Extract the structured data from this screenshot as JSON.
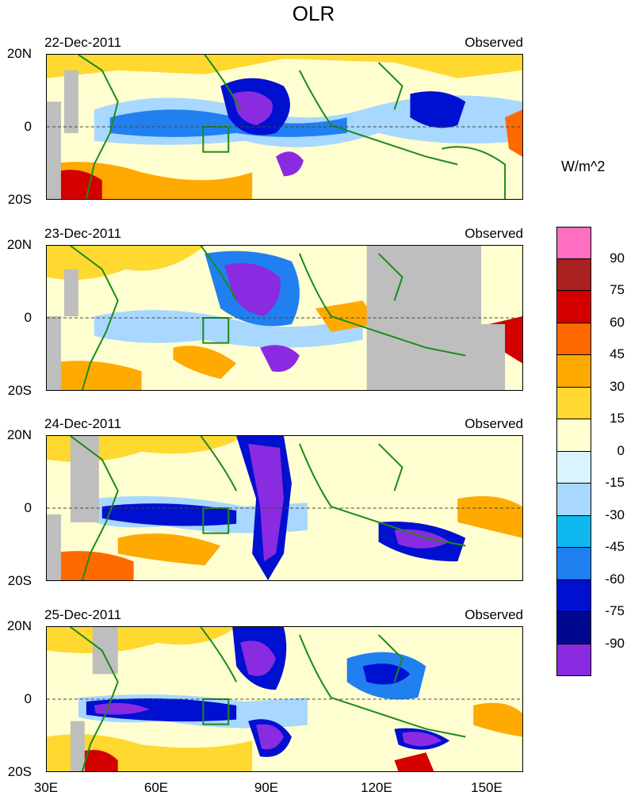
{
  "title": "OLR",
  "unit_label": "W/m^2",
  "panels": [
    {
      "date": "22-Dec-2011",
      "status": "Observed"
    },
    {
      "date": "23-Dec-2011",
      "status": "Observed"
    },
    {
      "date": "24-Dec-2011",
      "status": "Observed"
    },
    {
      "date": "25-Dec-2011",
      "status": "Observed"
    }
  ],
  "lat_ticks": [
    "20N",
    "0",
    "20S"
  ],
  "lon_ticks": [
    "30E",
    "60E",
    "90E",
    "120E",
    "150E"
  ],
  "colorbar": {
    "labels": [
      "90",
      "75",
      "60",
      "45",
      "30",
      "15",
      "0",
      "-15",
      "-30",
      "-45",
      "-60",
      "-75",
      "-90"
    ],
    "colors": [
      "#ff6ec0",
      "#a82020",
      "#d40000",
      "#ff6a00",
      "#ffaa00",
      "#ffd830",
      "#fffed0",
      "#d8f4ff",
      "#a8d8ff",
      "#10b8f0",
      "#2080f0",
      "#0010d0",
      "#000890",
      "#8a2be2"
    ]
  },
  "colors": {
    "land_outline": "#1a8a1a",
    "missing": "#bebebe"
  }
}
